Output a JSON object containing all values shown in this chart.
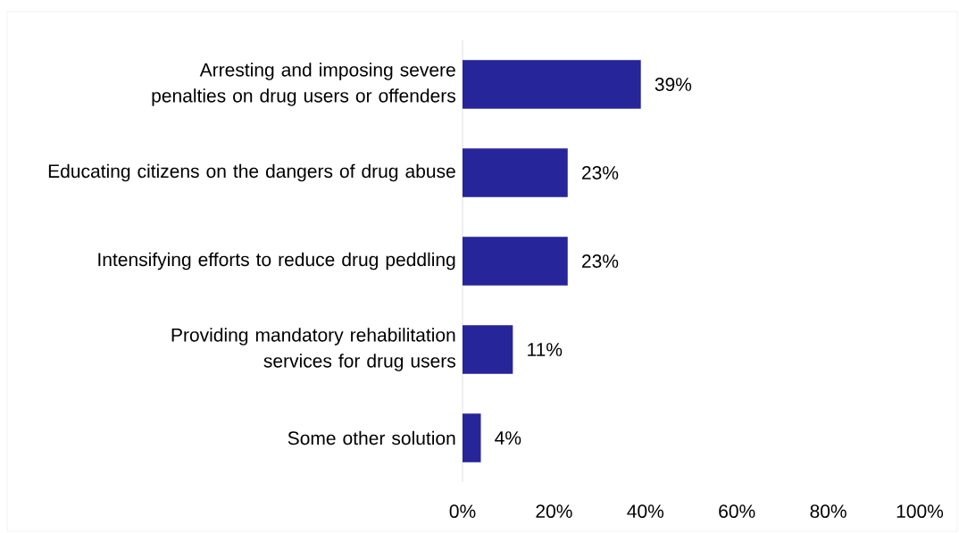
{
  "chart_data": {
    "type": "bar",
    "orientation": "horizontal",
    "categories": [
      "Arresting and imposing severe penalties on drug users or offenders",
      "Educating citizens on the dangers of drug abuse",
      "Intensifying efforts to reduce drug peddling",
      "Providing mandatory rehabilitation services for drug users",
      "Some other solution"
    ],
    "values": [
      39,
      23,
      23,
      11,
      4
    ],
    "value_labels": [
      "39%",
      "23%",
      "23%",
      "11%",
      "4%"
    ],
    "color": "#27259a",
    "xlim": [
      0,
      100
    ],
    "xticks": [
      {
        "value": 0,
        "label": "0%"
      },
      {
        "value": 20,
        "label": "20%"
      },
      {
        "value": 40,
        "label": "40%"
      },
      {
        "value": 60,
        "label": "60%"
      },
      {
        "value": 80,
        "label": "80%"
      },
      {
        "value": 100,
        "label": "100%"
      }
    ],
    "grid": false
  }
}
